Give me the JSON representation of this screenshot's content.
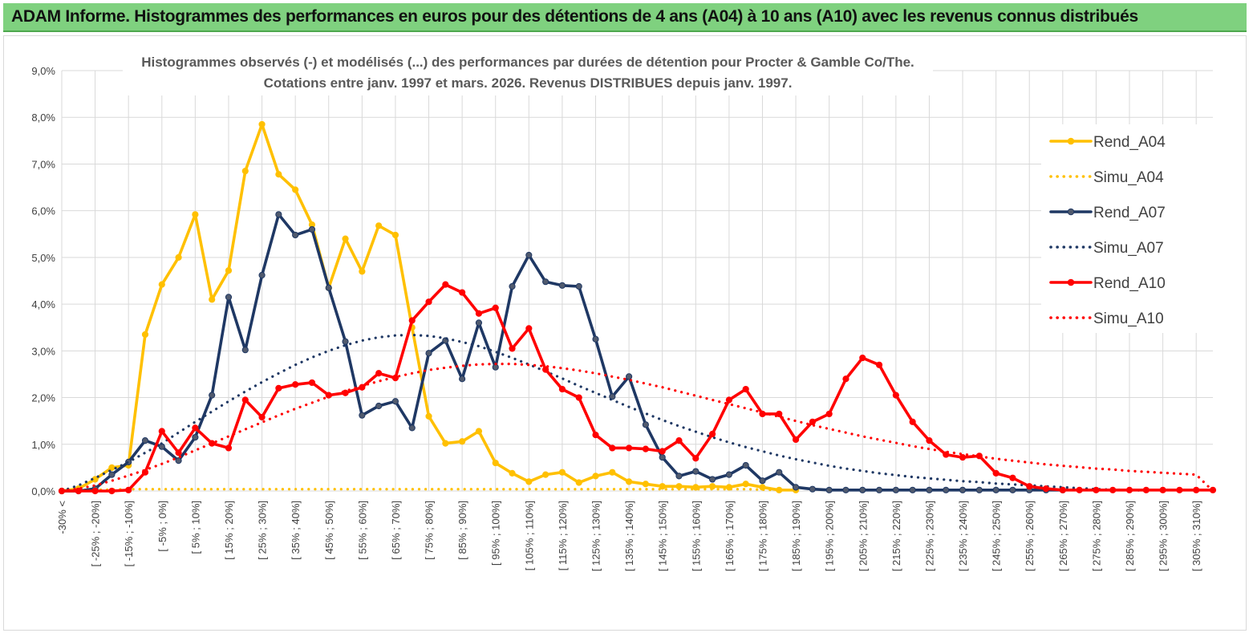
{
  "banner": {
    "title": "ADAM Informe. Histogrammes des performances en euros pour des détentions de 4 ans (A04) à 10 ans (A10) avec les revenus connus distribués"
  },
  "colors": {
    "banner_bg": "#7fd17f",
    "A04": "#ffc000",
    "A07": "#1f3864",
    "A10": "#ff0000",
    "grid": "#d9d9d9"
  },
  "chart_data": {
    "type": "line",
    "title_lines": [
      "Histogrammes observés (-) et modélisés (...) des performances par durées de détention pour Procter & Gamble Co/The.",
      "Cotations entre janv. 1997 et mars. 2026. Revenus DISTRIBUES depuis janv. 1997."
    ],
    "ylim": [
      0,
      9
    ],
    "y_ticks": [
      0,
      1,
      2,
      3,
      4,
      5,
      6,
      7,
      8,
      9
    ],
    "y_tick_labels": [
      "0,0%",
      "1,0%",
      "2,0%",
      "3,0%",
      "4,0%",
      "5,0%",
      "6,0%",
      "7,0%",
      "8,0%",
      "9,0%"
    ],
    "x_labels": [
      "-30% <",
      "[ -25% ; -20%]",
      "[ -15% ; -10%]",
      "[ -5% ; 0%]",
      "[ 5% ; 10%]",
      "[ 15% ; 20%]",
      "[ 25% ; 30%]",
      "[ 35% ; 40%]",
      "[ 45% ; 50%]",
      "[ 55% ; 60%]",
      "[ 65% ; 70%]",
      "[ 75% ; 80%]",
      "[ 85% ; 90%]",
      "[ 95% ; 100%]",
      "[ 105% ; 110%]",
      "[ 115% ; 120%]",
      "[ 125% ; 130%]",
      "[ 135% ; 140%]",
      "[ 145% ; 150%]",
      "[ 155% ; 160%]",
      "[ 165% ; 170%]",
      "[ 175% ; 180%]",
      "[ 185% ; 190%]",
      "[ 195% ; 200%]",
      "[ 205% ; 210%]",
      "[ 215% ; 220%]",
      "[ 225% ; 230%]",
      "[ 235% ; 240%]",
      "[ 245% ; 250%]",
      "[ 255% ; 260%]",
      "[ 265% ; 270%]",
      "[ 275% ; 280%]",
      "[ 285% ; 290%]",
      "[ 295% ; 300%]",
      "[ 305% ; 310%]"
    ],
    "n_points": 70,
    "legend_position": "top-right",
    "series": [
      {
        "name": "Rend_A04",
        "style": "solid",
        "color": "#ffc000",
        "values": [
          0,
          0.05,
          0.25,
          0.5,
          0.55,
          3.35,
          4.42,
          5.0,
          5.92,
          4.1,
          4.72,
          6.85,
          7.85,
          6.78,
          6.45,
          5.7,
          4.35,
          5.4,
          4.7,
          5.68,
          5.48,
          3.5,
          1.6,
          1.02,
          1.06,
          1.28,
          0.6,
          0.38,
          0.2,
          0.35,
          0.4,
          0.18,
          0.32,
          0.4,
          0.2,
          0.15,
          0.1,
          0.1,
          0.08,
          0.1,
          0.08,
          0.15,
          0.08,
          0.02,
          0.02
        ]
      },
      {
        "name": "Simu_A04",
        "style": "dotted",
        "color": "#ffc000",
        "values": [
          0,
          0.02,
          0.03,
          0.03,
          0.04,
          0.04,
          0.04,
          0.04,
          0.04,
          0.04,
          0.04,
          0.04,
          0.04,
          0.04,
          0.04,
          0.04,
          0.04,
          0.04,
          0.04,
          0.04,
          0.04,
          0.04,
          0.04,
          0.04,
          0.04,
          0.04,
          0.04,
          0.04,
          0.04,
          0.04,
          0.04,
          0.04,
          0.04,
          0.04,
          0.04,
          0.04,
          0.04,
          0.04,
          0.04,
          0.04,
          0.04,
          0.04,
          0.03,
          0.02,
          0.02
        ]
      },
      {
        "name": "Rend_A07",
        "style": "solid",
        "color": "#1f3864",
        "values": [
          0,
          0,
          0.05,
          0.35,
          0.62,
          1.08,
          0.95,
          0.65,
          1.15,
          2.05,
          4.15,
          3.02,
          4.62,
          5.92,
          5.48,
          5.6,
          4.35,
          3.2,
          1.62,
          1.82,
          1.92,
          1.35,
          2.95,
          3.22,
          2.4,
          3.6,
          2.65,
          4.38,
          5.05,
          4.48,
          4.4,
          4.38,
          3.25,
          2.02,
          2.45,
          1.42,
          0.72,
          0.32,
          0.42,
          0.25,
          0.35,
          0.55,
          0.22,
          0.4,
          0.08,
          0.04,
          0.02,
          0.02,
          0.02,
          0.02,
          0.02,
          0.02,
          0.02,
          0.02,
          0.02,
          0.02,
          0.02,
          0.02,
          0.02,
          0.02,
          0.02
        ]
      },
      {
        "name": "Simu_A07",
        "style": "dotted",
        "color": "#1f3864",
        "values": [
          0,
          0.12,
          0.28,
          0.45,
          0.62,
          0.82,
          1.02,
          1.25,
          1.48,
          1.7,
          1.92,
          2.13,
          2.33,
          2.52,
          2.7,
          2.86,
          3.0,
          3.12,
          3.22,
          3.29,
          3.33,
          3.34,
          3.32,
          3.27,
          3.19,
          3.1,
          2.98,
          2.85,
          2.71,
          2.56,
          2.41,
          2.25,
          2.1,
          1.95,
          1.8,
          1.66,
          1.52,
          1.39,
          1.27,
          1.15,
          1.04,
          0.94,
          0.85,
          0.76,
          0.68,
          0.61,
          0.54,
          0.48,
          0.43,
          0.38,
          0.34,
          0.3,
          0.27,
          0.24,
          0.21,
          0.19,
          0.16,
          0.14,
          0.12,
          0.1,
          0.08,
          0.06,
          0.04,
          0.03,
          0.02,
          0.01
        ]
      },
      {
        "name": "Rend_A10",
        "style": "solid",
        "color": "#ff0000",
        "values": [
          0,
          0,
          0,
          0,
          0.02,
          0.4,
          1.28,
          0.82,
          1.35,
          1.02,
          0.92,
          1.95,
          1.58,
          2.2,
          2.28,
          2.32,
          2.05,
          2.1,
          2.22,
          2.52,
          2.42,
          3.65,
          4.05,
          4.42,
          4.25,
          3.8,
          3.92,
          3.05,
          3.48,
          2.6,
          2.18,
          2.0,
          1.2,
          0.92,
          0.92,
          0.9,
          0.85,
          1.08,
          0.7,
          1.22,
          1.95,
          2.18,
          1.65,
          1.65,
          1.1,
          1.48,
          1.65,
          2.4,
          2.85,
          2.7,
          2.05,
          1.48,
          1.08,
          0.78,
          0.72,
          0.75,
          0.38,
          0.28,
          0.1,
          0.05,
          0.02,
          0.02,
          0.02,
          0.02,
          0.02,
          0.02,
          0.02,
          0.02,
          0.02,
          0.02
        ]
      },
      {
        "name": "Simu_A10",
        "style": "dotted",
        "color": "#ff0000",
        "values": [
          0,
          0.05,
          0.12,
          0.22,
          0.33,
          0.45,
          0.58,
          0.72,
          0.87,
          1.02,
          1.17,
          1.32,
          1.47,
          1.62,
          1.76,
          1.89,
          2.02,
          2.14,
          2.25,
          2.35,
          2.44,
          2.52,
          2.59,
          2.64,
          2.68,
          2.71,
          2.72,
          2.72,
          2.7,
          2.67,
          2.63,
          2.58,
          2.52,
          2.45,
          2.38,
          2.3,
          2.22,
          2.13,
          2.04,
          1.95,
          1.86,
          1.77,
          1.68,
          1.59,
          1.5,
          1.41,
          1.33,
          1.25,
          1.17,
          1.1,
          1.03,
          0.96,
          0.9,
          0.84,
          0.79,
          0.74,
          0.69,
          0.65,
          0.61,
          0.57,
          0.54,
          0.51,
          0.48,
          0.46,
          0.43,
          0.41,
          0.39,
          0.37,
          0.35,
          0
        ]
      }
    ]
  }
}
